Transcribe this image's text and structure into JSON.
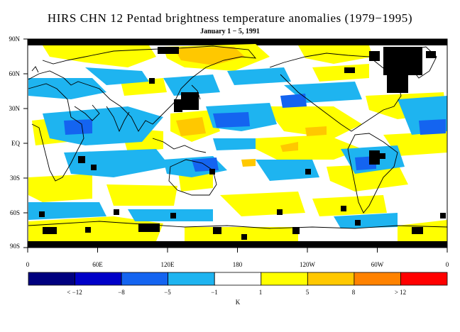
{
  "title": "HIRS CHN 12 Pentad brightness temperature anomalies (1979−1995)",
  "subtitle": "January 1 − 5, 1991",
  "lat_labels": [
    "90N",
    "60N",
    "30N",
    "EQ",
    "30S",
    "60S",
    "90S"
  ],
  "lon_labels": [
    "0",
    "60E",
    "120E",
    "180",
    "120W",
    "60W",
    "0"
  ],
  "colorbar": {
    "colors": [
      "#00007f",
      "#0000c8",
      "#1464f0",
      "#1eb4f0",
      "#ffffff",
      "#ffff00",
      "#ffc800",
      "#ff8200",
      "#ff0000"
    ],
    "labels": [
      "< −12",
      "−8",
      "−5",
      "−1",
      "1",
      "5",
      "8",
      "> 12"
    ],
    "unit": "K"
  },
  "map_colors": {
    "ocean_bg": "#ffffff",
    "cold": "#1eb4f0",
    "colder": "#1464f0",
    "warm": "#ffff00",
    "warmer": "#ffc800",
    "missing": "#000000",
    "coast": "#000000"
  }
}
